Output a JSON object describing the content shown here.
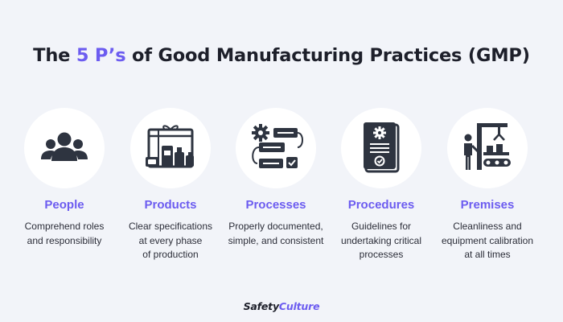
{
  "title": {
    "prefix": "The ",
    "accent": "5 P’s",
    "suffix": " of Good Manufacturing Practices (GMP)"
  },
  "accent_color": "#6c5cf0",
  "items": [
    {
      "heading": "People",
      "desc": [
        "Comprehend roles",
        "and responsibility"
      ],
      "icon": "people-group-icon"
    },
    {
      "heading": "Products",
      "desc": [
        "Clear specifications",
        "at every phase",
        "of production"
      ],
      "icon": "product-box-icon"
    },
    {
      "heading": "Processes",
      "desc": [
        "Properly documented,",
        "simple, and consistent"
      ],
      "icon": "process-flow-icon"
    },
    {
      "heading": "Procedures",
      "desc": [
        "Guidelines for",
        "undertaking critical",
        "processes"
      ],
      "icon": "procedure-document-icon"
    },
    {
      "heading": "Premises",
      "desc": [
        "Cleanliness and",
        "equipment calibration",
        "at all times"
      ],
      "icon": "factory-premises-icon"
    }
  ],
  "brand": {
    "part1": "Safety",
    "part2": "Culture"
  }
}
